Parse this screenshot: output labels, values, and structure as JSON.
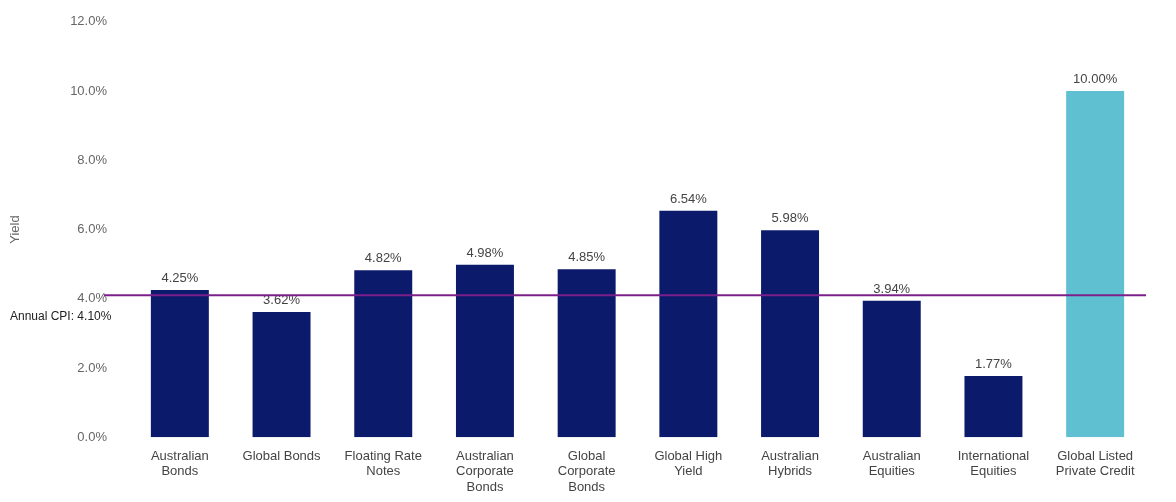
{
  "chart_data": {
    "type": "bar",
    "y_label": "Yield",
    "categories": [
      "Australian Bonds",
      "Global Bonds",
      "Floating Rate Notes",
      "Australian Corporate Bonds",
      "Global Corporate Bonds",
      "Global High Yield",
      "Australian Hybrids",
      "Australian Equities",
      "International Equities",
      "Global Listed Private Credit"
    ],
    "values": [
      4.25,
      3.62,
      4.82,
      4.98,
      4.85,
      6.54,
      5.98,
      3.94,
      1.77,
      10.0
    ],
    "value_labels": [
      "4.25%",
      "3.62%",
      "4.82%",
      "4.98%",
      "4.85%",
      "6.54%",
      "5.98%",
      "3.94%",
      "1.77%",
      "10.00%"
    ],
    "data_labels": true,
    "colors": [
      "#0b1a6b",
      "#0b1a6b",
      "#0b1a6b",
      "#0b1a6b",
      "#0b1a6b",
      "#0b1a6b",
      "#0b1a6b",
      "#0b1a6b",
      "#0b1a6b",
      "#5ec0d0"
    ],
    "ylim": [
      0,
      12
    ],
    "yticks": [
      {
        "value": 0,
        "label": "0.0%"
      },
      {
        "value": 2,
        "label": "2.0%"
      },
      {
        "value": 4,
        "label": "4.0%"
      },
      {
        "value": 6,
        "label": "6.0%"
      },
      {
        "value": 8,
        "label": "8.0%"
      },
      {
        "value": 10,
        "label": "10.0%"
      },
      {
        "value": 12,
        "label": "12.0%"
      }
    ],
    "grid": false,
    "reference_line": {
      "value": 4.1,
      "label": "Annual CPI: 4.10%",
      "color": "#7b1f8a"
    }
  }
}
